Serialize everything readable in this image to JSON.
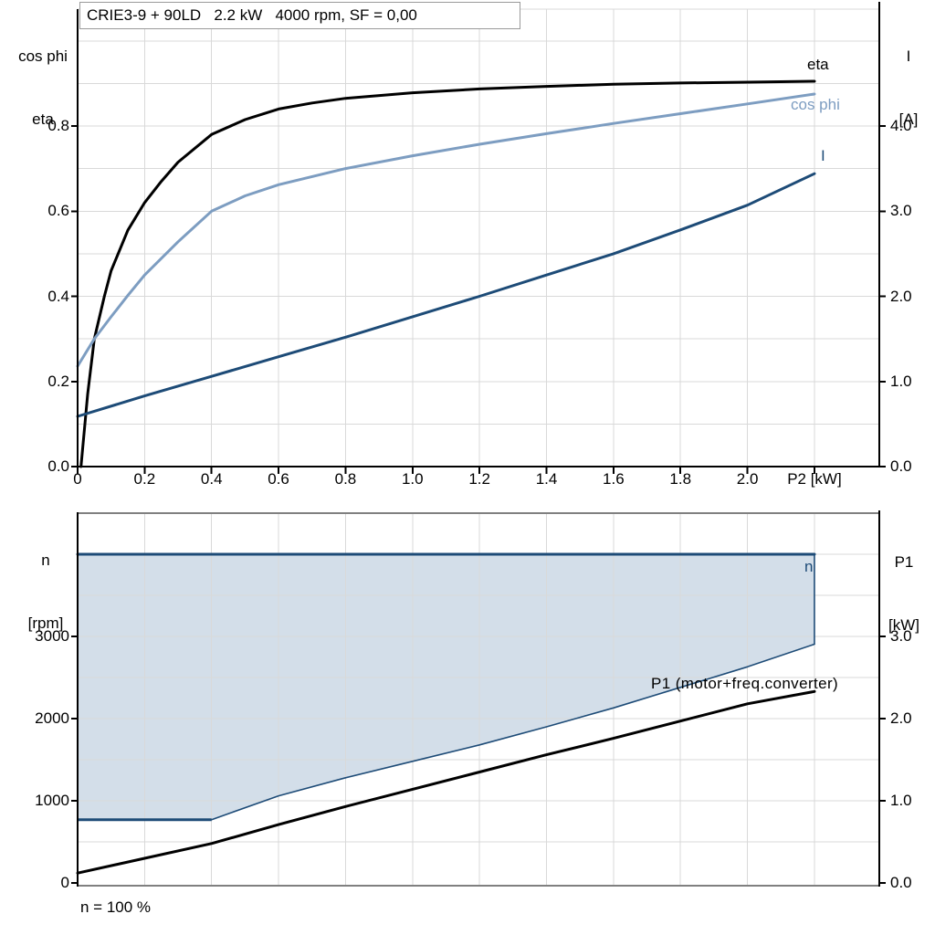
{
  "title_box": {
    "text": "CRIE3-9 + 90LD   2.2 kW   4000 rpm, SF = 0,00"
  },
  "footnote": "n = 100 %",
  "colors": {
    "eta": "#000000",
    "cos_phi": "#7D9DC1",
    "current": "#1D4B77",
    "speed": "#1D4B77",
    "p1": "#000000",
    "band_fill": "#D3DEE9",
    "grid": "#D9D9D9",
    "axis_black": "#000000",
    "axis_gray": "#808080",
    "title_border": "#9A9A9A"
  },
  "chart_data": [
    {
      "type": "line",
      "title": "CRIE3-9 + 90LD   2.2 kW   4000 rpm, SF = 0,00",
      "x_axis": {
        "label": "P2 [kW]",
        "min": 0,
        "max": 2.39,
        "grid_step": 0.2,
        "ticks": [
          0,
          0.2,
          0.4,
          0.6,
          0.8,
          1.0,
          1.2,
          1.4,
          1.6,
          1.8,
          2.0,
          2.2
        ],
        "tick_labels": [
          "0",
          "0.2",
          "0.4",
          "0.6",
          "0.8",
          "1.0",
          "1.2",
          "1.4",
          "1.6",
          "1.8",
          "2.0",
          "P2 [kW]"
        ]
      },
      "y_left": {
        "label_lines": [
          "cos phi",
          "eta"
        ],
        "min": 0,
        "max": 1.07,
        "grid_step": 0.1,
        "ticks": [
          0,
          0.2,
          0.4,
          0.6,
          0.8
        ],
        "tick_labels": [
          "0.0",
          "0.2",
          "0.4",
          "0.6",
          "0.8"
        ]
      },
      "y_right": {
        "label_lines": [
          "I",
          "[A]"
        ],
        "min": 0,
        "max": 5.37,
        "ticks": [
          0,
          1,
          2,
          3,
          4
        ],
        "tick_labels": [
          "0.0",
          "1.0",
          "2.0",
          "3.0",
          "4.0"
        ]
      },
      "legend_position": "end-of-curve",
      "grid": true,
      "series": [
        {
          "name": "eta",
          "axis": "left",
          "color": "#000000",
          "x": [
            0.01,
            0.03,
            0.05,
            0.08,
            0.1,
            0.15,
            0.2,
            0.25,
            0.3,
            0.4,
            0.5,
            0.6,
            0.7,
            0.8,
            1.0,
            1.2,
            1.4,
            1.6,
            1.8,
            2.0,
            2.2
          ],
          "y": [
            0,
            0.17,
            0.3,
            0.4,
            0.46,
            0.555,
            0.62,
            0.67,
            0.715,
            0.78,
            0.815,
            0.84,
            0.854,
            0.865,
            0.878,
            0.887,
            0.893,
            0.898,
            0.901,
            0.903,
            0.905
          ]
        },
        {
          "name": "cos phi",
          "axis": "left",
          "color": "#7D9DC1",
          "x": [
            0,
            0.05,
            0.1,
            0.15,
            0.2,
            0.3,
            0.4,
            0.5,
            0.6,
            0.8,
            1.0,
            1.2,
            1.4,
            1.6,
            1.8,
            2.0,
            2.2
          ],
          "y": [
            0.236,
            0.3,
            0.352,
            0.402,
            0.45,
            0.528,
            0.6,
            0.636,
            0.662,
            0.7,
            0.73,
            0.757,
            0.782,
            0.806,
            0.829,
            0.852,
            0.875
          ]
        },
        {
          "name": "I",
          "axis": "right",
          "color": "#1D4B77",
          "x": [
            0,
            0.2,
            0.4,
            0.6,
            0.8,
            1.0,
            1.2,
            1.4,
            1.6,
            1.8,
            2.0,
            2.2
          ],
          "y": [
            0.59,
            0.83,
            1.06,
            1.29,
            1.52,
            1.76,
            2.0,
            2.25,
            2.5,
            2.78,
            3.07,
            3.44
          ]
        }
      ]
    },
    {
      "type": "line",
      "x_axis": {
        "label": "",
        "min": 0,
        "max": 2.39,
        "grid_step": 0.2,
        "ticks": [],
        "tick_labels": []
      },
      "y_left": {
        "label_lines": [
          "n",
          "[rpm]"
        ],
        "min": 0,
        "max": 4490,
        "grid_step": 500,
        "ticks": [
          0,
          1000,
          2000,
          3000
        ],
        "tick_labels": [
          "0",
          "1000",
          "2000",
          "3000"
        ]
      },
      "y_right": {
        "label_lines": [
          "P1",
          "[kW]"
        ],
        "min": 0,
        "max": 4.49,
        "grid_step": 0.5,
        "ticks": [
          0,
          1,
          2,
          3
        ],
        "tick_labels": [
          "0.0",
          "1.0",
          "2.0",
          "3.0"
        ]
      },
      "band": {
        "fill": "#D3DEE9",
        "upper_rpm": 4000,
        "lower_series_index": 1
      },
      "footnote": "n = 100 %",
      "grid": true,
      "series": [
        {
          "name": "n",
          "axis": "left",
          "color": "#1D4B77",
          "x": [
            0,
            2.2
          ],
          "y": [
            4000,
            4000
          ]
        },
        {
          "name": "speed-range-lower-limit",
          "axis": "left",
          "color": "#1D4B77",
          "x": [
            0,
            0.4,
            0.6,
            0.8,
            1.0,
            1.2,
            1.4,
            1.6,
            1.8,
            2.0,
            2.2
          ],
          "y": [
            770,
            770,
            1060,
            1280,
            1480,
            1680,
            1900,
            2130,
            2380,
            2630,
            2905
          ]
        },
        {
          "name": "P1 (motor+freq.converter)",
          "axis": "right",
          "color": "#000000",
          "x": [
            0,
            0.2,
            0.4,
            0.6,
            0.8,
            1.0,
            1.2,
            1.4,
            1.6,
            1.8,
            2.0,
            2.2
          ],
          "y": [
            0.12,
            0.3,
            0.48,
            0.71,
            0.93,
            1.14,
            1.35,
            1.56,
            1.76,
            1.97,
            2.18,
            2.33
          ]
        }
      ]
    }
  ]
}
